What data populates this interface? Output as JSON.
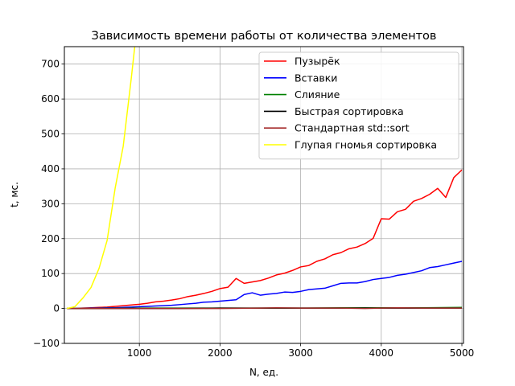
{
  "chart_data": {
    "type": "line",
    "title": "Зависимость времени работы от количества элементов",
    "xlabel": "N, ед.",
    "ylabel": "t, мс.",
    "xlim": [
      70,
      5020
    ],
    "ylim": [
      -100,
      750
    ],
    "xticks": [
      1000,
      2000,
      3000,
      4000,
      5000
    ],
    "yticks": [
      -100,
      0,
      100,
      200,
      300,
      400,
      500,
      600,
      700
    ],
    "grid": true,
    "legend_position": "top-right",
    "series": [
      {
        "name": "Пузырёк",
        "color": "#ff0000",
        "x": [
          100,
          200,
          300,
          400,
          500,
          600,
          700,
          800,
          900,
          1000,
          1100,
          1200,
          1300,
          1400,
          1500,
          1600,
          1700,
          1800,
          1900,
          2000,
          2100,
          2200,
          2300,
          2400,
          2500,
          2600,
          2700,
          2800,
          2900,
          3000,
          3100,
          3200,
          3300,
          3400,
          3500,
          3600,
          3700,
          3800,
          3900,
          4000,
          4100,
          4200,
          4300,
          4400,
          4500,
          4600,
          4700,
          4800,
          4900,
          5000
        ],
        "y": [
          0,
          0,
          1,
          2,
          3,
          4,
          6,
          8,
          10,
          12,
          15,
          19,
          21,
          24,
          28,
          34,
          38,
          43,
          49,
          57,
          61,
          86,
          72,
          76,
          80,
          87,
          96,
          101,
          109,
          119,
          123,
          135,
          142,
          154,
          160,
          171,
          176,
          186,
          201,
          257,
          256,
          277,
          284,
          307,
          315,
          327,
          344,
          318,
          375,
          397
        ]
      },
      {
        "name": "Вставки",
        "color": "#0000ff",
        "x": [
          100,
          200,
          300,
          400,
          500,
          600,
          700,
          800,
          900,
          1000,
          1100,
          1200,
          1300,
          1400,
          1500,
          1600,
          1700,
          1800,
          1900,
          2000,
          2100,
          2200,
          2300,
          2400,
          2500,
          2600,
          2700,
          2800,
          2900,
          3000,
          3100,
          3200,
          3300,
          3400,
          3500,
          3600,
          3700,
          3800,
          3900,
          4000,
          4100,
          4200,
          4300,
          4400,
          4500,
          4600,
          4700,
          4800,
          4900,
          5000
        ],
        "y": [
          0,
          0,
          0,
          1,
          1,
          2,
          2,
          3,
          4,
          5,
          6,
          7,
          8,
          9,
          11,
          13,
          15,
          18,
          19,
          21,
          23,
          25,
          40,
          45,
          38,
          41,
          43,
          47,
          46,
          49,
          54,
          56,
          58,
          65,
          72,
          73,
          73,
          77,
          83,
          86,
          89,
          95,
          98,
          103,
          108,
          117,
          120,
          125,
          130,
          135
        ]
      },
      {
        "name": "Слияние",
        "color": "#008000",
        "x": [
          100,
          500,
          1000,
          1500,
          2000,
          2500,
          3000,
          3500,
          4000,
          4500,
          5000
        ],
        "y": [
          0,
          0,
          1,
          1,
          1,
          1,
          1,
          2,
          2,
          2,
          3
        ]
      },
      {
        "name": "Быстрая сортировка",
        "color": "#000000",
        "x": [
          100,
          500,
          1000,
          1500,
          2000,
          2500,
          3000,
          3500,
          4000,
          4500,
          5000
        ],
        "y": [
          0,
          0,
          0,
          0,
          1,
          1,
          1,
          1,
          1,
          1,
          1
        ]
      },
      {
        "name": "Стандартная std::sort",
        "color": "#a52a2a",
        "x": [
          100,
          500,
          1000,
          1500,
          2000,
          2500,
          2700,
          3000,
          3500,
          3800,
          4000,
          4200,
          4500,
          5000
        ],
        "y": [
          0,
          0,
          0,
          0,
          0,
          1,
          2,
          1,
          1,
          0,
          1,
          2,
          1,
          1
        ]
      },
      {
        "name": "Глупая гномья сортировка",
        "color": "#ffff00",
        "x": [
          100,
          200,
          300,
          400,
          500,
          600,
          700,
          800,
          900,
          1000
        ],
        "y": [
          0,
          5,
          30,
          60,
          115,
          195,
          345,
          465,
          660,
          870
        ]
      }
    ]
  }
}
